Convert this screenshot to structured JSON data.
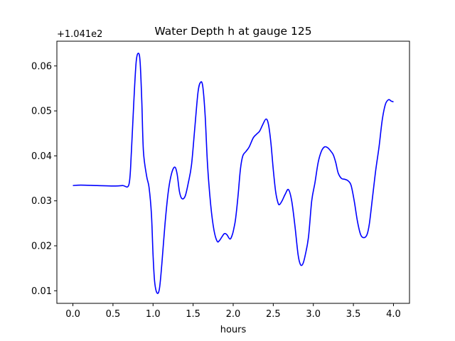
{
  "chart_data": {
    "type": "line",
    "title": "Water Depth h at gauge 125",
    "xlabel": "hours",
    "ylabel": "",
    "offset_label": "+1.041e2",
    "offset": 104.1,
    "xlim": [
      -0.2,
      4.2
    ],
    "ylim": [
      0.0072,
      0.0655
    ],
    "grid": false,
    "x_ticks": [
      0.0,
      0.5,
      1.0,
      1.5,
      2.0,
      2.5,
      3.0,
      3.5,
      4.0
    ],
    "x_tick_labels": [
      "0.0",
      "0.5",
      "1.0",
      "1.5",
      "2.0",
      "2.5",
      "3.0",
      "3.5",
      "4.0"
    ],
    "y_ticks": [
      0.01,
      0.02,
      0.03,
      0.04,
      0.05,
      0.06
    ],
    "y_tick_labels": [
      "0.01",
      "0.02",
      "0.03",
      "0.04",
      "0.05",
      "0.06"
    ],
    "series": [
      {
        "color": "#0000ff",
        "x": [
          0.0,
          0.1,
          0.3,
          0.5,
          0.62,
          0.7,
          0.73,
          0.76,
          0.79,
          0.82,
          0.84,
          0.86,
          0.88,
          0.92,
          0.95,
          0.98,
          1.0,
          1.02,
          1.05,
          1.08,
          1.11,
          1.15,
          1.19,
          1.23,
          1.27,
          1.3,
          1.33,
          1.36,
          1.4,
          1.44,
          1.48,
          1.52,
          1.56,
          1.59,
          1.62,
          1.65,
          1.68,
          1.72,
          1.76,
          1.8,
          1.83,
          1.86,
          1.89,
          1.92,
          1.96,
          1.99,
          2.01,
          2.03,
          2.06,
          2.09,
          2.12,
          2.16,
          2.2,
          2.25,
          2.29,
          2.33,
          2.37,
          2.41,
          2.44,
          2.47,
          2.5,
          2.53,
          2.56,
          2.58,
          2.61,
          2.65,
          2.69,
          2.73,
          2.77,
          2.81,
          2.84,
          2.87,
          2.9,
          2.94,
          2.98,
          3.02,
          3.06,
          3.1,
          3.14,
          3.18,
          3.22,
          3.25,
          3.28,
          3.31,
          3.35,
          3.39,
          3.43,
          3.47,
          3.51,
          3.55,
          3.59,
          3.63,
          3.67,
          3.7,
          3.74,
          3.78,
          3.82,
          3.86,
          3.9,
          3.94,
          3.97,
          4.0
        ],
        "y": [
          0.0334,
          0.0335,
          0.0334,
          0.0333,
          0.0334,
          0.0337,
          0.041,
          0.052,
          0.061,
          0.0628,
          0.0605,
          0.052,
          0.041,
          0.0355,
          0.033,
          0.027,
          0.018,
          0.012,
          0.0095,
          0.0105,
          0.016,
          0.025,
          0.032,
          0.036,
          0.0375,
          0.036,
          0.032,
          0.0305,
          0.031,
          0.034,
          0.038,
          0.046,
          0.054,
          0.0563,
          0.0555,
          0.049,
          0.038,
          0.029,
          0.0235,
          0.021,
          0.0212,
          0.022,
          0.0227,
          0.0225,
          0.0215,
          0.0225,
          0.024,
          0.026,
          0.031,
          0.037,
          0.04,
          0.041,
          0.042,
          0.044,
          0.0448,
          0.0455,
          0.047,
          0.0482,
          0.047,
          0.043,
          0.037,
          0.032,
          0.0295,
          0.0292,
          0.03,
          0.0315,
          0.0325,
          0.03,
          0.0245,
          0.018,
          0.0158,
          0.016,
          0.018,
          0.022,
          0.03,
          0.034,
          0.0385,
          0.041,
          0.042,
          0.0418,
          0.041,
          0.0402,
          0.0385,
          0.0362,
          0.035,
          0.0348,
          0.0345,
          0.0335,
          0.03,
          0.0255,
          0.0225,
          0.0218,
          0.0225,
          0.025,
          0.031,
          0.037,
          0.042,
          0.048,
          0.0515,
          0.0525,
          0.0522,
          0.052
        ]
      }
    ]
  }
}
